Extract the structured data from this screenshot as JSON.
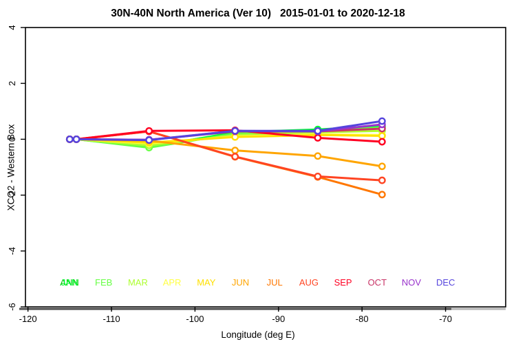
{
  "header": {
    "title": "30N-40N North America (Ver 10)   2015-01-01 to 2020-12-18"
  },
  "chart_data": {
    "type": "line",
    "title": "30N-40N North America (Ver 10)   2015-01-01 to 2020-12-18",
    "xlabel": "Longitude (deg E)",
    "ylabel": "XCO2 - Western Box",
    "xlim": [
      -120.3,
      -62.8
    ],
    "ylim": [
      -6,
      4
    ],
    "xticks": [
      -120,
      -110,
      -100,
      -90,
      -80,
      -70
    ],
    "yticks": [
      4,
      2,
      0,
      -2,
      -4,
      -6
    ],
    "grid": false,
    "marker": "open-circle-white-fill",
    "x": [
      -115.0,
      -114.2,
      -105.5,
      -95.2,
      -85.3,
      -77.6
    ],
    "series": [
      {
        "name": "ANN",
        "color": "#00C800",
        "values": [
          0,
          0,
          -0.25,
          0.22,
          0.33,
          0.45
        ]
      },
      {
        "name": "JAN",
        "color": "#00FF33",
        "values": [
          0,
          0,
          -0.28,
          0.25,
          0.35,
          0.48
        ]
      },
      {
        "name": "FEB",
        "color": "#66FF44",
        "values": [
          0,
          0,
          -0.3,
          0.2,
          0.3,
          0.42
        ]
      },
      {
        "name": "MAR",
        "color": "#ADFF2F",
        "values": [
          0,
          0,
          -0.22,
          0.15,
          0.25,
          0.3
        ]
      },
      {
        "name": "APR",
        "color": "#FFFF44",
        "values": [
          0,
          0,
          -0.15,
          0.1,
          0.18,
          0.15
        ]
      },
      {
        "name": "MAY",
        "color": "#FFE000",
        "values": [
          0,
          0,
          -0.12,
          0.08,
          0.15,
          0.12
        ]
      },
      {
        "name": "JUN",
        "color": "#FFA500",
        "values": [
          0,
          0,
          -0.05,
          -0.4,
          -0.6,
          -0.97
        ]
      },
      {
        "name": "JUL",
        "color": "#FF7700",
        "values": [
          0,
          0,
          0.28,
          -0.63,
          -1.35,
          -1.98
        ]
      },
      {
        "name": "AUG",
        "color": "#FF4422",
        "values": [
          0,
          0,
          0.28,
          -0.62,
          -1.33,
          -1.47
        ]
      },
      {
        "name": "SEP",
        "color": "#FF0022",
        "values": [
          0,
          0,
          0.3,
          0.32,
          0.05,
          -0.09
        ]
      },
      {
        "name": "OCT",
        "color": "#C83366",
        "values": [
          0,
          0,
          -0.02,
          0.28,
          0.28,
          0.38
        ]
      },
      {
        "name": "NOV",
        "color": "#9933CC",
        "values": [
          0,
          0,
          -0.02,
          0.3,
          0.28,
          0.53
        ]
      },
      {
        "name": "DEC",
        "color": "#5544DD",
        "values": [
          0,
          0,
          -0.03,
          0.3,
          0.3,
          0.65
        ]
      }
    ],
    "legend": {
      "position": "bottom-inside",
      "labels": [
        {
          "text": "ANN",
          "color": "#00C800"
        },
        {
          "text": "JAN",
          "color": "#00FF33"
        },
        {
          "text": "FEB",
          "color": "#66FF44"
        },
        {
          "text": "MAR",
          "color": "#ADFF2F"
        },
        {
          "text": "APR",
          "color": "#FFFF44"
        },
        {
          "text": "MAY",
          "color": "#FFE000"
        },
        {
          "text": "JUN",
          "color": "#FFA500"
        },
        {
          "text": "JUL",
          "color": "#FF7700"
        },
        {
          "text": "AUG",
          "color": "#FF4422"
        },
        {
          "text": "SEP",
          "color": "#FF0022"
        },
        {
          "text": "OCT",
          "color": "#C83366"
        },
        {
          "text": "NOV",
          "color": "#9933CC"
        },
        {
          "text": "DEC",
          "color": "#5544DD"
        }
      ]
    },
    "colors": {
      "axis": "#000000",
      "baseline_dark": "#4d4d4d",
      "baseline_light": "#b5b5b5"
    }
  }
}
